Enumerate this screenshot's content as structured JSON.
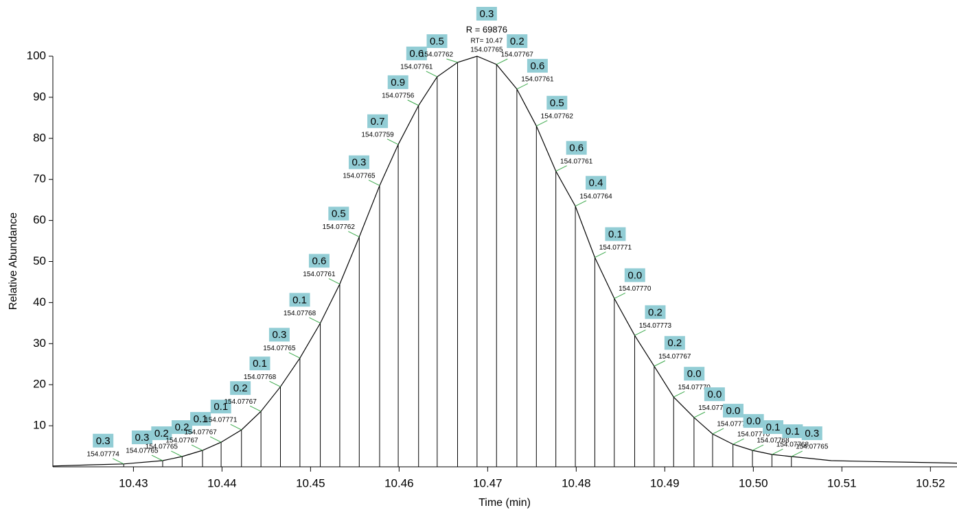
{
  "chart_data": {
    "type": "line",
    "x_label": "Time (min)",
    "y_label": "Relative Abundance",
    "xlim": [
      10.4209,
      10.523
    ],
    "ylim": [
      0,
      100
    ],
    "xticks": [
      10.43,
      10.44,
      10.45,
      10.46,
      10.47,
      10.48,
      10.49,
      {
        "value": 10.5,
        "label": "10.50"
      },
      10.51,
      10.52
    ],
    "yticks": [
      10,
      20,
      30,
      40,
      50,
      60,
      70,
      80,
      90,
      100
    ],
    "color": "#000000",
    "label_color": "#92cdd5",
    "leader_color": "#3aa84a",
    "apex_annotations": [
      "R = 69876",
      "RT= 10.47"
    ],
    "apex_color": "#e8303a",
    "apex_index": 17,
    "profile": {
      "x": [
        10.4209,
        10.4255,
        10.4289,
        10.4333,
        10.4355,
        10.4378,
        10.4399,
        10.4422,
        10.4444,
        10.4466,
        10.4488,
        10.4511,
        10.4533,
        10.4555,
        10.4578,
        10.4599,
        10.4622,
        10.4643,
        10.4666,
        10.4688,
        10.471,
        10.4733,
        10.4755,
        10.4777,
        10.4799,
        10.4821,
        10.4843,
        10.4866,
        10.4888,
        10.491,
        10.4933,
        10.4954,
        10.4977,
        10.4999,
        10.5021,
        10.5043,
        10.5066,
        10.5088,
        10.513,
        10.518,
        10.523
      ],
      "values": [
        0.2,
        0.5,
        0.7,
        1.5,
        2.5,
        4,
        6,
        9,
        13.5,
        19.5,
        26.5,
        35,
        44.5,
        56,
        68.5,
        78.5,
        88,
        95,
        98.5,
        100,
        98,
        92,
        83,
        72,
        63.5,
        51,
        41,
        32,
        24.5,
        17,
        12,
        8,
        5.5,
        4,
        3,
        2.5,
        2,
        1.5,
        1.3,
        1.1,
        0.9
      ]
    },
    "scans": {
      "x": [
        10.4289,
        10.4333,
        10.4355,
        10.4378,
        10.4399,
        10.4422,
        10.4444,
        10.4466,
        10.4488,
        10.4511,
        10.4533,
        10.4555,
        10.4578,
        10.4599,
        10.4622,
        10.4643,
        10.4666,
        10.4688,
        10.471,
        10.4733,
        10.4755,
        10.4777,
        10.4799,
        10.4821,
        10.4843,
        10.4866,
        10.4888,
        10.491,
        10.4933,
        10.4954,
        10.4977,
        10.4999,
        10.5021,
        10.5043
      ],
      "values": [
        0.7,
        1.5,
        2.5,
        4,
        6,
        9,
        13.5,
        19.5,
        26.5,
        35,
        44.5,
        56,
        68.5,
        78.5,
        88,
        95,
        98.5,
        100,
        98,
        92,
        83,
        72,
        63.5,
        51,
        41,
        32,
        24.5,
        17,
        12,
        8,
        5.5,
        4,
        3,
        2.5
      ],
      "error_labels": [
        "0.3",
        "0.3",
        "0.2",
        "0.2",
        "0.1",
        "0.1",
        "0.2",
        "0.1",
        "0.3",
        "0.1",
        "0.6",
        "0.5",
        "0.3",
        "0.7",
        "0.9",
        "0.6",
        "0.5",
        "0.3",
        "0.2",
        "0.6",
        "0.5",
        "0.6",
        "0.4",
        "0.1",
        "0.0",
        "0.2",
        "0.2",
        "0.0",
        "0.0",
        "0.0",
        "0.0",
        "0.1",
        "0.1",
        "0.3"
      ],
      "mass_labels": [
        "154.07774",
        "154.07765",
        "154.07765",
        "154.07767",
        "154.07767",
        "154.07771",
        "154.07767",
        "154.07768",
        "154.07765",
        "154.07768",
        "154.07761",
        "154.07762",
        "154.07765",
        "154.07759",
        "154.07756",
        "154.07761",
        "154.07762",
        "154.07765",
        "154.07767",
        "154.07761",
        "154.07762",
        "154.07761",
        "154.07764",
        "154.07771",
        "154.07770",
        "154.07773",
        "154.07767",
        "154.07770",
        "154.07770",
        "154.07770",
        "154.07770",
        "154.07768",
        "154.07768",
        "154.07765"
      ]
    }
  }
}
